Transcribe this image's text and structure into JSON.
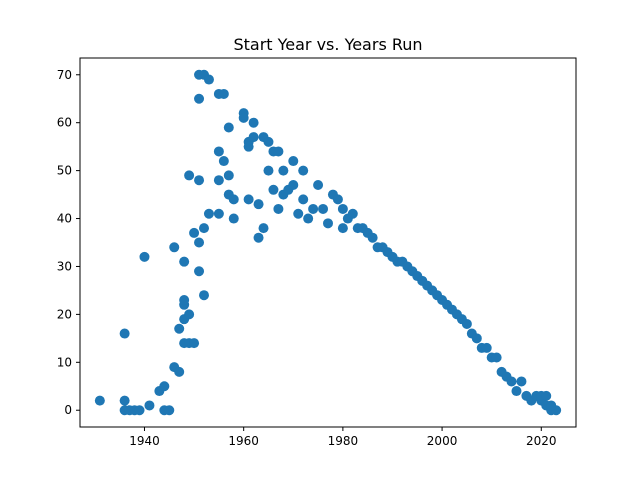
{
  "chart_data": {
    "type": "scatter",
    "title": "Start Year vs. Years Run",
    "xlabel": "",
    "ylabel": "",
    "xlim": [
      1927,
      2027
    ],
    "ylim": [
      -3.5,
      73.5
    ],
    "xticks": [
      1940,
      1960,
      1980,
      2000,
      2020
    ],
    "yticks": [
      0,
      10,
      20,
      30,
      40,
      50,
      60,
      70
    ],
    "grid": false,
    "point_color": "#1f77b4",
    "points": [
      [
        1931,
        2
      ],
      [
        1936,
        16
      ],
      [
        1936,
        2
      ],
      [
        1936,
        0
      ],
      [
        1937,
        0
      ],
      [
        1938,
        0
      ],
      [
        1939,
        0
      ],
      [
        1940,
        32
      ],
      [
        1941,
        1
      ],
      [
        1943,
        4
      ],
      [
        1944,
        5
      ],
      [
        1944,
        0
      ],
      [
        1945,
        0
      ],
      [
        1946,
        34
      ],
      [
        1946,
        9
      ],
      [
        1947,
        8
      ],
      [
        1947,
        17
      ],
      [
        1948,
        31
      ],
      [
        1948,
        22
      ],
      [
        1948,
        23
      ],
      [
        1948,
        19
      ],
      [
        1948,
        14
      ],
      [
        1949,
        49
      ],
      [
        1949,
        20
      ],
      [
        1949,
        14
      ],
      [
        1950,
        37
      ],
      [
        1950,
        14
      ],
      [
        1951,
        70
      ],
      [
        1951,
        65
      ],
      [
        1951,
        48
      ],
      [
        1951,
        35
      ],
      [
        1951,
        29
      ],
      [
        1952,
        70
      ],
      [
        1952,
        38
      ],
      [
        1952,
        24
      ],
      [
        1953,
        69
      ],
      [
        1953,
        41
      ],
      [
        1955,
        66
      ],
      [
        1955,
        54
      ],
      [
        1955,
        48
      ],
      [
        1955,
        41
      ],
      [
        1956,
        66
      ],
      [
        1956,
        52
      ],
      [
        1957,
        59
      ],
      [
        1957,
        49
      ],
      [
        1957,
        45
      ],
      [
        1958,
        44
      ],
      [
        1958,
        40
      ],
      [
        1960,
        62
      ],
      [
        1960,
        61
      ],
      [
        1961,
        56
      ],
      [
        1961,
        55
      ],
      [
        1961,
        44
      ],
      [
        1962,
        60
      ],
      [
        1962,
        57
      ],
      [
        1963,
        43
      ],
      [
        1963,
        36
      ],
      [
        1964,
        57
      ],
      [
        1964,
        38
      ],
      [
        1965,
        56
      ],
      [
        1965,
        50
      ],
      [
        1966,
        54
      ],
      [
        1966,
        46
      ],
      [
        1967,
        54
      ],
      [
        1967,
        42
      ],
      [
        1968,
        50
      ],
      [
        1968,
        45
      ],
      [
        1969,
        46
      ],
      [
        1970,
        52
      ],
      [
        1970,
        47
      ],
      [
        1971,
        41
      ],
      [
        1972,
        50
      ],
      [
        1972,
        44
      ],
      [
        1973,
        40
      ],
      [
        1974,
        42
      ],
      [
        1975,
        47
      ],
      [
        1976,
        42
      ],
      [
        1977,
        39
      ],
      [
        1978,
        45
      ],
      [
        1979,
        44
      ],
      [
        1980,
        42
      ],
      [
        1980,
        38
      ],
      [
        1981,
        40
      ],
      [
        1982,
        41
      ],
      [
        1983,
        38
      ],
      [
        1984,
        38
      ],
      [
        1985,
        37
      ],
      [
        1986,
        36
      ],
      [
        1987,
        34
      ],
      [
        1988,
        34
      ],
      [
        1989,
        33
      ],
      [
        1990,
        32
      ],
      [
        1991,
        31
      ],
      [
        1992,
        31
      ],
      [
        1993,
        30
      ],
      [
        1994,
        29
      ],
      [
        1995,
        28
      ],
      [
        1996,
        27
      ],
      [
        1997,
        26
      ],
      [
        1998,
        25
      ],
      [
        1999,
        24
      ],
      [
        2000,
        23
      ],
      [
        2001,
        22
      ],
      [
        2002,
        21
      ],
      [
        2003,
        20
      ],
      [
        2004,
        19
      ],
      [
        2005,
        18
      ],
      [
        2006,
        16
      ],
      [
        2007,
        15
      ],
      [
        2008,
        13
      ],
      [
        2009,
        13
      ],
      [
        2010,
        11
      ],
      [
        2011,
        11
      ],
      [
        2012,
        8
      ],
      [
        2013,
        7
      ],
      [
        2014,
        6
      ],
      [
        2015,
        4
      ],
      [
        2016,
        6
      ],
      [
        2017,
        3
      ],
      [
        2018,
        2
      ],
      [
        2019,
        3
      ],
      [
        2020,
        3
      ],
      [
        2020,
        2
      ],
      [
        2021,
        3
      ],
      [
        2021,
        1
      ],
      [
        2022,
        0
      ],
      [
        2023,
        0
      ],
      [
        2022,
        1
      ]
    ]
  }
}
